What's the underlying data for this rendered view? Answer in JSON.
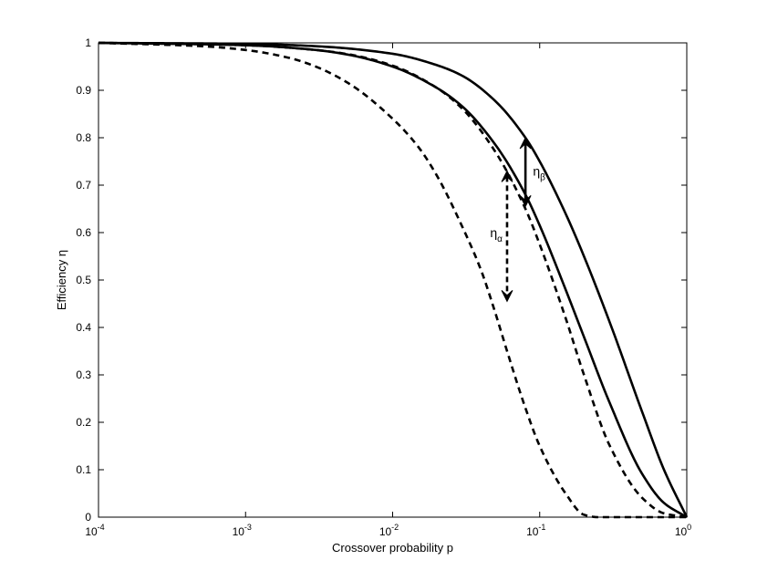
{
  "chart_data": {
    "type": "line",
    "title": "",
    "xlabel": "Crossover probability p",
    "ylabel": "Efficiency η",
    "xscale": "log",
    "xlim": [
      0.0001,
      1
    ],
    "ylim": [
      0,
      1
    ],
    "grid": false,
    "x_ticks": [
      {
        "value": 0.0001,
        "base": "10",
        "exp": "-4"
      },
      {
        "value": 0.001,
        "base": "10",
        "exp": "-3"
      },
      {
        "value": 0.01,
        "base": "10",
        "exp": "-2"
      },
      {
        "value": 0.1,
        "base": "10",
        "exp": "-1"
      },
      {
        "value": 1,
        "base": "10",
        "exp": "0"
      }
    ],
    "y_ticks": [
      "0",
      "0.1",
      "0.2",
      "0.3",
      "0.4",
      "0.5",
      "0.6",
      "0.7",
      "0.8",
      "0.9",
      "1"
    ],
    "series": [
      {
        "style": "solid",
        "x": [
          0.0001,
          0.001,
          0.003,
          0.005,
          0.01,
          0.02,
          0.03,
          0.05,
          0.08,
          0.1,
          0.15,
          0.2,
          0.3,
          0.5,
          0.7,
          1
        ],
        "values": [
          1.0,
          0.995,
          0.985,
          0.975,
          0.95,
          0.905,
          0.865,
          0.785,
          0.68,
          0.615,
          0.48,
          0.38,
          0.24,
          0.09,
          0.03,
          0.0
        ]
      },
      {
        "style": "solid",
        "x": [
          0.0001,
          0.001,
          0.003,
          0.01,
          0.02,
          0.03,
          0.05,
          0.08,
          0.1,
          0.15,
          0.2,
          0.3,
          0.5,
          0.7,
          1
        ],
        "values": [
          1.0,
          0.998,
          0.993,
          0.977,
          0.953,
          0.93,
          0.877,
          0.8,
          0.75,
          0.64,
          0.55,
          0.41,
          0.22,
          0.1,
          0.0
        ]
      },
      {
        "style": "dashed",
        "x": [
          0.0001,
          0.001,
          0.003,
          0.005,
          0.01,
          0.02,
          0.03,
          0.05,
          0.08,
          0.1,
          0.15,
          0.2,
          0.3,
          0.5,
          0.7,
          1
        ],
        "values": [
          1.0,
          0.995,
          0.985,
          0.976,
          0.952,
          0.905,
          0.86,
          0.77,
          0.65,
          0.575,
          0.42,
          0.3,
          0.15,
          0.04,
          0.008,
          0.0
        ]
      },
      {
        "style": "dashed",
        "x": [
          0.0001,
          0.0005,
          0.001,
          0.002,
          0.003,
          0.005,
          0.01,
          0.015,
          0.02,
          0.03,
          0.04,
          0.05,
          0.06,
          0.08,
          0.1,
          0.15,
          0.2,
          0.25,
          0.5,
          1
        ],
        "values": [
          1.0,
          0.993,
          0.985,
          0.968,
          0.95,
          0.915,
          0.84,
          0.78,
          0.72,
          0.61,
          0.52,
          0.43,
          0.35,
          0.23,
          0.15,
          0.05,
          0.005,
          0.0,
          0.0,
          0.0
        ]
      }
    ],
    "annotations": [
      {
        "text": "η",
        "sub": "β",
        "arrow": {
          "x": 0.08,
          "y_from": 0.8,
          "y_to": 0.655,
          "style": "solid"
        },
        "label_x": 0.09,
        "label_y": 0.72
      },
      {
        "text": "η",
        "sub": "α",
        "arrow": {
          "x": 0.06,
          "y_from": 0.73,
          "y_to": 0.455,
          "style": "dashed"
        },
        "label_x": 0.046,
        "label_y": 0.59
      }
    ]
  }
}
